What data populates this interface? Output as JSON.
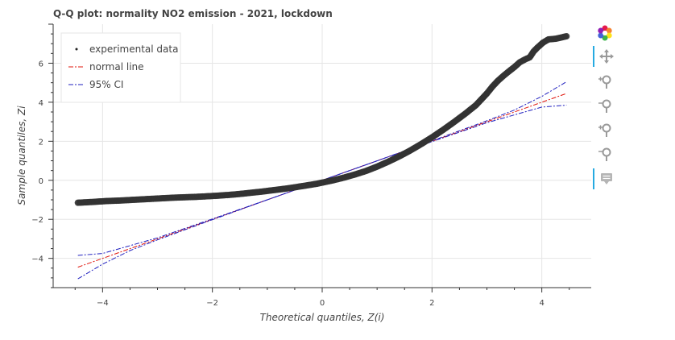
{
  "title": "Q-Q plot: normality NO2 emission - 2021, lockdown",
  "toolbar": {
    "icons": [
      "bokeh-logo-icon",
      "pan-icon",
      "zoom-in-icon",
      "zoom-out-icon",
      "zoom-in-icon",
      "zoom-out-icon",
      "hover-icon"
    ]
  },
  "chart_data": {
    "type": "scatter",
    "title": "Q-Q plot: normality NO2 emission - 2021, lockdown",
    "xlabel": "Theoretical quantiles, Z(i)",
    "ylabel": "Sample quantiles, Zi",
    "xlim": [
      -4.9,
      4.9
    ],
    "ylim": [
      -5.5,
      8.0
    ],
    "xticks": [
      -4,
      -2,
      0,
      2,
      4
    ],
    "yticks": [
      -4,
      -2,
      0,
      2,
      4,
      6
    ],
    "xtick_labels": [
      "−4",
      "−2",
      "0",
      "2",
      "4"
    ],
    "ytick_labels": [
      "−4",
      "−2",
      "0",
      "2",
      "4",
      "6"
    ],
    "grid": true,
    "legend_position": "top-left",
    "legend": [
      {
        "label": "experimental data",
        "color": "#222222",
        "style": "dot"
      },
      {
        "label": "normal line",
        "color": "#e0140b",
        "style": "dashdot"
      },
      {
        "label": "95% CI",
        "color": "#1f1fbf",
        "style": "dashdot"
      }
    ],
    "series": [
      {
        "name": "experimental data",
        "color": "#333333",
        "points": [
          [
            -4.45,
            -1.15
          ],
          [
            -4.25,
            -1.12
          ],
          [
            -4.12,
            -1.1
          ],
          [
            -4.02,
            -1.08
          ],
          [
            -3.9,
            -1.06
          ],
          [
            -3.7,
            -1.04
          ],
          [
            -3.5,
            -1.01
          ],
          [
            -3.3,
            -0.98
          ],
          [
            -3.1,
            -0.95
          ],
          [
            -2.9,
            -0.92
          ],
          [
            -2.7,
            -0.89
          ],
          [
            -2.5,
            -0.87
          ],
          [
            -2.3,
            -0.85
          ],
          [
            -2.1,
            -0.82
          ],
          [
            -1.9,
            -0.79
          ],
          [
            -1.7,
            -0.75
          ],
          [
            -1.5,
            -0.7
          ],
          [
            -1.3,
            -0.64
          ],
          [
            -1.1,
            -0.58
          ],
          [
            -0.9,
            -0.51
          ],
          [
            -0.7,
            -0.44
          ],
          [
            -0.5,
            -0.36
          ],
          [
            -0.3,
            -0.27
          ],
          [
            -0.1,
            -0.18
          ],
          [
            0.0,
            -0.12
          ],
          [
            0.2,
            0.0
          ],
          [
            0.4,
            0.14
          ],
          [
            0.6,
            0.3
          ],
          [
            0.8,
            0.48
          ],
          [
            1.0,
            0.7
          ],
          [
            1.2,
            0.95
          ],
          [
            1.4,
            1.22
          ],
          [
            1.6,
            1.52
          ],
          [
            1.8,
            1.85
          ],
          [
            2.0,
            2.2
          ],
          [
            2.2,
            2.58
          ],
          [
            2.4,
            2.98
          ],
          [
            2.6,
            3.4
          ],
          [
            2.8,
            3.85
          ],
          [
            3.0,
            4.45
          ],
          [
            3.1,
            4.8
          ],
          [
            3.2,
            5.1
          ],
          [
            3.3,
            5.35
          ],
          [
            3.4,
            5.58
          ],
          [
            3.5,
            5.8
          ],
          [
            3.6,
            6.05
          ],
          [
            3.7,
            6.2
          ],
          [
            3.78,
            6.3
          ],
          [
            3.85,
            6.6
          ],
          [
            3.92,
            6.8
          ],
          [
            4.02,
            7.05
          ],
          [
            4.12,
            7.22
          ],
          [
            4.25,
            7.25
          ],
          [
            4.45,
            7.38
          ]
        ]
      },
      {
        "name": "normal line",
        "color": "#e0140b",
        "points": [
          [
            -4.45,
            -4.45
          ],
          [
            4.45,
            4.45
          ]
        ]
      },
      {
        "name": "95% CI",
        "color": "#1f1fbf",
        "points": [
          [
            -4.45,
            -3.85
          ],
          [
            -4.0,
            -3.75
          ],
          [
            -3.5,
            -3.35
          ],
          [
            -3.0,
            -2.95
          ],
          [
            -2.0,
            -1.98
          ],
          [
            -1.0,
            -1.0
          ],
          [
            0.0,
            0.0
          ],
          [
            1.0,
            1.0
          ],
          [
            2.0,
            1.98
          ],
          [
            3.0,
            2.95
          ],
          [
            3.5,
            3.35
          ],
          [
            4.0,
            3.75
          ],
          [
            4.45,
            3.85
          ]
        ]
      },
      {
        "name": "95% CI",
        "color": "#1f1fbf",
        "points": [
          [
            -4.45,
            -5.05
          ],
          [
            -4.0,
            -4.3
          ],
          [
            -3.5,
            -3.6
          ],
          [
            -3.0,
            -3.05
          ],
          [
            -2.0,
            -2.02
          ],
          [
            -1.0,
            -1.0
          ],
          [
            0.0,
            0.0
          ],
          [
            1.0,
            1.0
          ],
          [
            2.0,
            2.02
          ],
          [
            3.0,
            3.05
          ],
          [
            3.5,
            3.6
          ],
          [
            4.0,
            4.3
          ],
          [
            4.45,
            5.05
          ]
        ]
      }
    ]
  }
}
